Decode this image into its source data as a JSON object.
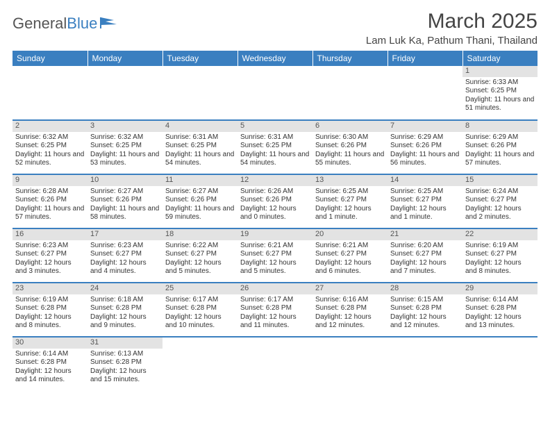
{
  "logo": {
    "general": "General",
    "blue": "Blue"
  },
  "title": "March 2025",
  "location": "Lam Luk Ka, Pathum Thani, Thailand",
  "colors": {
    "header_bg": "#3a7fc0",
    "header_text": "#ffffff",
    "daynum_bg": "#e3e3e3",
    "row_border": "#3a7fc0",
    "body_text": "#333333"
  },
  "day_headers": [
    "Sunday",
    "Monday",
    "Tuesday",
    "Wednesday",
    "Thursday",
    "Friday",
    "Saturday"
  ],
  "weeks": [
    [
      null,
      null,
      null,
      null,
      null,
      null,
      {
        "n": "1",
        "sr": "Sunrise: 6:33 AM",
        "ss": "Sunset: 6:25 PM",
        "dl": "Daylight: 11 hours and 51 minutes."
      }
    ],
    [
      {
        "n": "2",
        "sr": "Sunrise: 6:32 AM",
        "ss": "Sunset: 6:25 PM",
        "dl": "Daylight: 11 hours and 52 minutes."
      },
      {
        "n": "3",
        "sr": "Sunrise: 6:32 AM",
        "ss": "Sunset: 6:25 PM",
        "dl": "Daylight: 11 hours and 53 minutes."
      },
      {
        "n": "4",
        "sr": "Sunrise: 6:31 AM",
        "ss": "Sunset: 6:25 PM",
        "dl": "Daylight: 11 hours and 54 minutes."
      },
      {
        "n": "5",
        "sr": "Sunrise: 6:31 AM",
        "ss": "Sunset: 6:25 PM",
        "dl": "Daylight: 11 hours and 54 minutes."
      },
      {
        "n": "6",
        "sr": "Sunrise: 6:30 AM",
        "ss": "Sunset: 6:26 PM",
        "dl": "Daylight: 11 hours and 55 minutes."
      },
      {
        "n": "7",
        "sr": "Sunrise: 6:29 AM",
        "ss": "Sunset: 6:26 PM",
        "dl": "Daylight: 11 hours and 56 minutes."
      },
      {
        "n": "8",
        "sr": "Sunrise: 6:29 AM",
        "ss": "Sunset: 6:26 PM",
        "dl": "Daylight: 11 hours and 57 minutes."
      }
    ],
    [
      {
        "n": "9",
        "sr": "Sunrise: 6:28 AM",
        "ss": "Sunset: 6:26 PM",
        "dl": "Daylight: 11 hours and 57 minutes."
      },
      {
        "n": "10",
        "sr": "Sunrise: 6:27 AM",
        "ss": "Sunset: 6:26 PM",
        "dl": "Daylight: 11 hours and 58 minutes."
      },
      {
        "n": "11",
        "sr": "Sunrise: 6:27 AM",
        "ss": "Sunset: 6:26 PM",
        "dl": "Daylight: 11 hours and 59 minutes."
      },
      {
        "n": "12",
        "sr": "Sunrise: 6:26 AM",
        "ss": "Sunset: 6:26 PM",
        "dl": "Daylight: 12 hours and 0 minutes."
      },
      {
        "n": "13",
        "sr": "Sunrise: 6:25 AM",
        "ss": "Sunset: 6:27 PM",
        "dl": "Daylight: 12 hours and 1 minute."
      },
      {
        "n": "14",
        "sr": "Sunrise: 6:25 AM",
        "ss": "Sunset: 6:27 PM",
        "dl": "Daylight: 12 hours and 1 minute."
      },
      {
        "n": "15",
        "sr": "Sunrise: 6:24 AM",
        "ss": "Sunset: 6:27 PM",
        "dl": "Daylight: 12 hours and 2 minutes."
      }
    ],
    [
      {
        "n": "16",
        "sr": "Sunrise: 6:23 AM",
        "ss": "Sunset: 6:27 PM",
        "dl": "Daylight: 12 hours and 3 minutes."
      },
      {
        "n": "17",
        "sr": "Sunrise: 6:23 AM",
        "ss": "Sunset: 6:27 PM",
        "dl": "Daylight: 12 hours and 4 minutes."
      },
      {
        "n": "18",
        "sr": "Sunrise: 6:22 AM",
        "ss": "Sunset: 6:27 PM",
        "dl": "Daylight: 12 hours and 5 minutes."
      },
      {
        "n": "19",
        "sr": "Sunrise: 6:21 AM",
        "ss": "Sunset: 6:27 PM",
        "dl": "Daylight: 12 hours and 5 minutes."
      },
      {
        "n": "20",
        "sr": "Sunrise: 6:21 AM",
        "ss": "Sunset: 6:27 PM",
        "dl": "Daylight: 12 hours and 6 minutes."
      },
      {
        "n": "21",
        "sr": "Sunrise: 6:20 AM",
        "ss": "Sunset: 6:27 PM",
        "dl": "Daylight: 12 hours and 7 minutes."
      },
      {
        "n": "22",
        "sr": "Sunrise: 6:19 AM",
        "ss": "Sunset: 6:27 PM",
        "dl": "Daylight: 12 hours and 8 minutes."
      }
    ],
    [
      {
        "n": "23",
        "sr": "Sunrise: 6:19 AM",
        "ss": "Sunset: 6:28 PM",
        "dl": "Daylight: 12 hours and 8 minutes."
      },
      {
        "n": "24",
        "sr": "Sunrise: 6:18 AM",
        "ss": "Sunset: 6:28 PM",
        "dl": "Daylight: 12 hours and 9 minutes."
      },
      {
        "n": "25",
        "sr": "Sunrise: 6:17 AM",
        "ss": "Sunset: 6:28 PM",
        "dl": "Daylight: 12 hours and 10 minutes."
      },
      {
        "n": "26",
        "sr": "Sunrise: 6:17 AM",
        "ss": "Sunset: 6:28 PM",
        "dl": "Daylight: 12 hours and 11 minutes."
      },
      {
        "n": "27",
        "sr": "Sunrise: 6:16 AM",
        "ss": "Sunset: 6:28 PM",
        "dl": "Daylight: 12 hours and 12 minutes."
      },
      {
        "n": "28",
        "sr": "Sunrise: 6:15 AM",
        "ss": "Sunset: 6:28 PM",
        "dl": "Daylight: 12 hours and 12 minutes."
      },
      {
        "n": "29",
        "sr": "Sunrise: 6:14 AM",
        "ss": "Sunset: 6:28 PM",
        "dl": "Daylight: 12 hours and 13 minutes."
      }
    ],
    [
      {
        "n": "30",
        "sr": "Sunrise: 6:14 AM",
        "ss": "Sunset: 6:28 PM",
        "dl": "Daylight: 12 hours and 14 minutes."
      },
      {
        "n": "31",
        "sr": "Sunrise: 6:13 AM",
        "ss": "Sunset: 6:28 PM",
        "dl": "Daylight: 12 hours and 15 minutes."
      },
      null,
      null,
      null,
      null,
      null
    ]
  ]
}
